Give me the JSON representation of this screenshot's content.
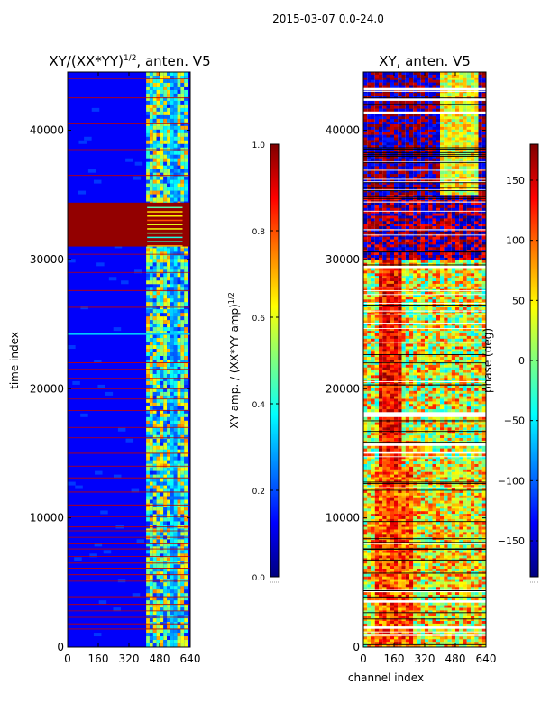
{
  "figure": {
    "suptitle": "2015-03-07 0.0-24.0"
  },
  "chart_data": [
    {
      "type": "heatmap",
      "title_main": "XY/(XX*YY)",
      "title_sup": "1/2",
      "title_tail": ", anten. V5",
      "xlabel": "",
      "ylabel": "time index",
      "xlim": [
        0,
        640
      ],
      "ylim": [
        0,
        44500
      ],
      "xticks": [
        0,
        160,
        320,
        480,
        640
      ],
      "yticks": [
        0,
        10000,
        20000,
        30000,
        40000
      ],
      "colorbar": {
        "label_main": "XY amp. / (XX*YY amp)",
        "label_sup": "1/2",
        "range": [
          0.0,
          1.0
        ],
        "ticks": [
          "0.0",
          "0.2",
          "0.4",
          "0.6",
          "0.8",
          "1.0"
        ],
        "colormap": "jet"
      }
    },
    {
      "type": "heatmap",
      "title": "XY, anten. V5",
      "xlabel": "channel index",
      "ylabel": "",
      "xlim": [
        0,
        640
      ],
      "ylim": [
        0,
        44500
      ],
      "xticks": [
        0,
        160,
        320,
        480,
        640
      ],
      "yticks": [
        0,
        10000,
        20000,
        30000,
        40000
      ],
      "colorbar": {
        "label": "phase (deg)",
        "range": [
          -180,
          180
        ],
        "ticks": [
          "150",
          "100",
          "50",
          "0",
          "−50",
          "−100",
          "−150"
        ],
        "colormap": "jet"
      }
    }
  ],
  "colors": {
    "jet": [
      "#00007f",
      "#0000ff",
      "#007fff",
      "#00ffff",
      "#7fff7f",
      "#ffff00",
      "#ff7f00",
      "#ff0000",
      "#7f0000"
    ],
    "axis": "#000000",
    "background": "#ffffff"
  }
}
